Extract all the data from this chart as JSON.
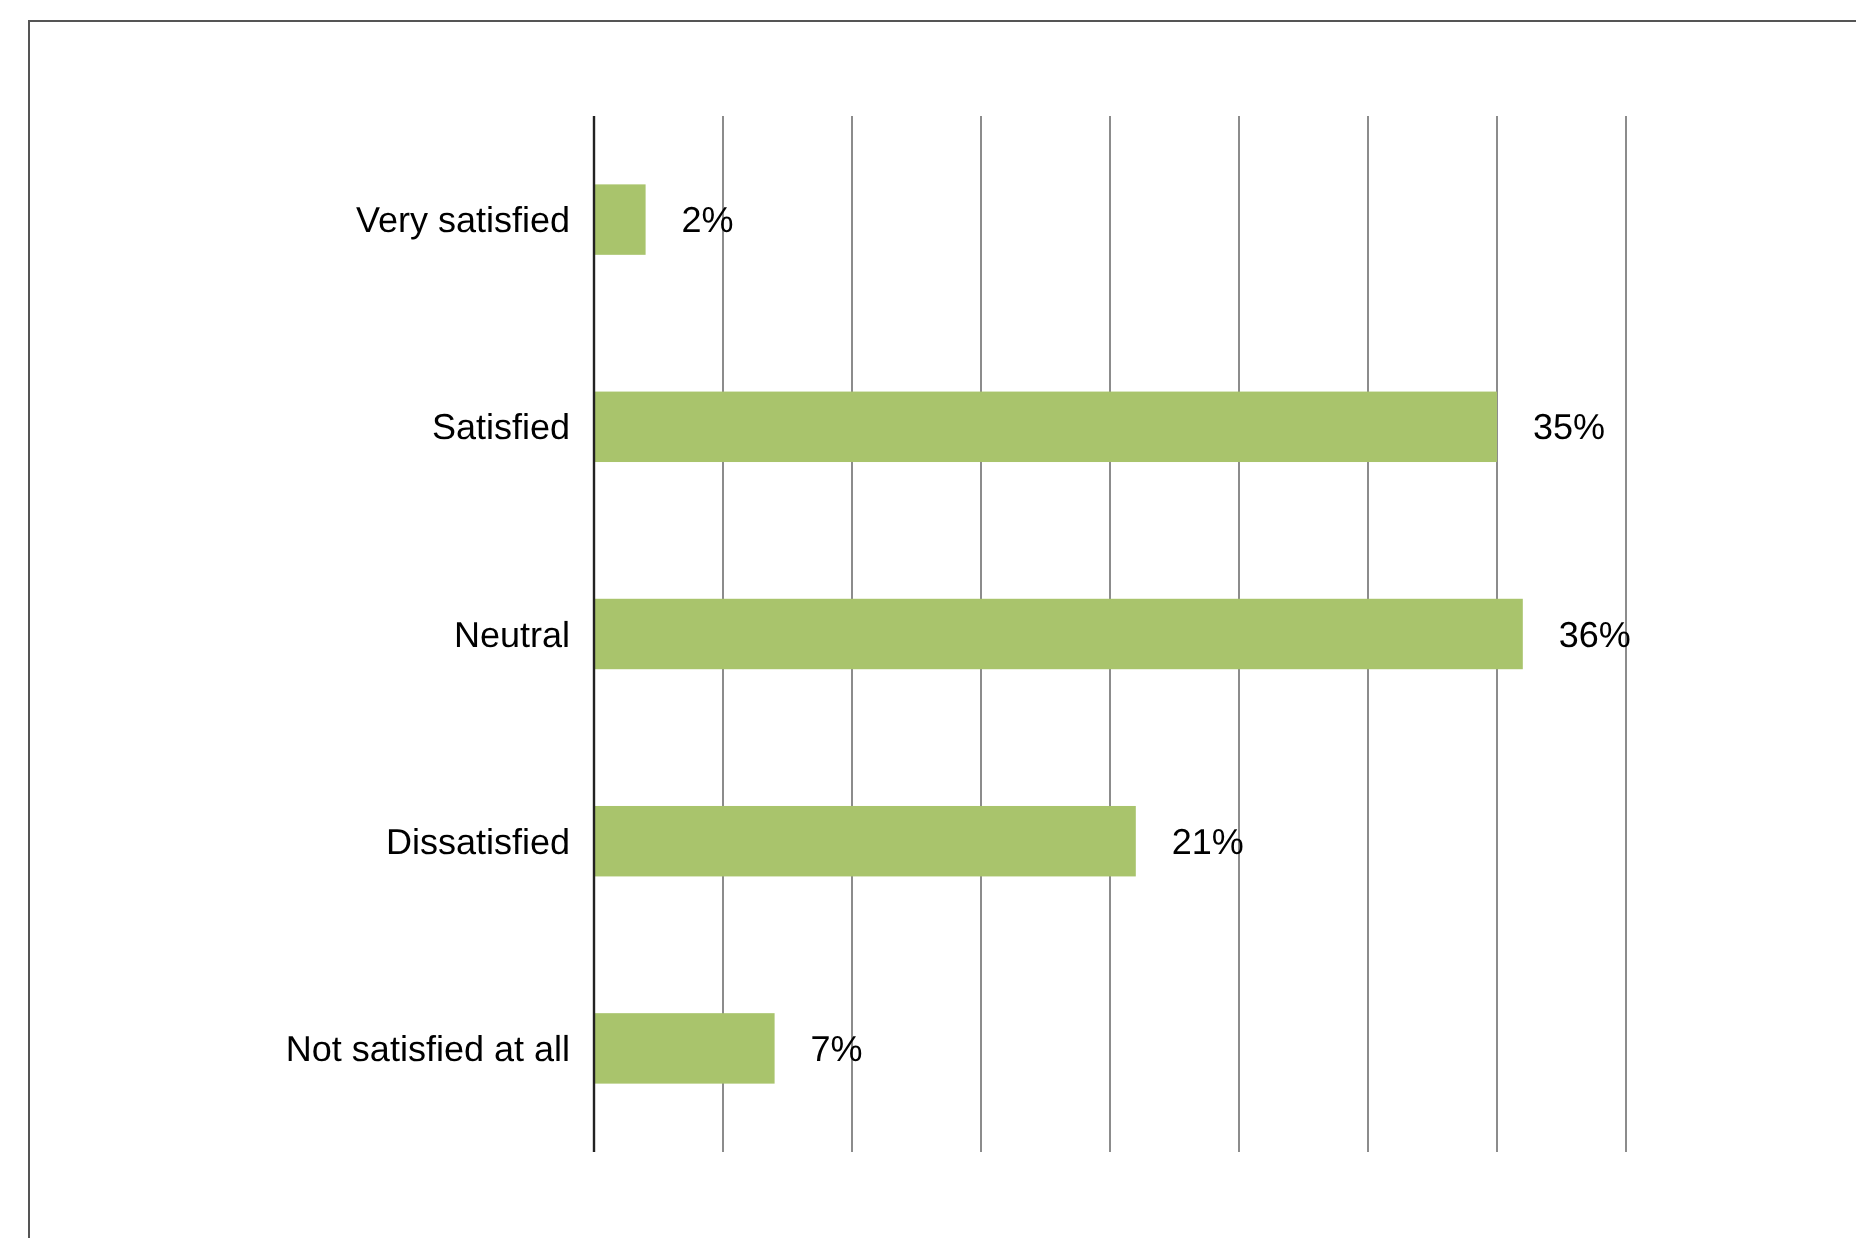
{
  "chart_data": {
    "type": "bar",
    "orientation": "horizontal",
    "categories": [
      "Very satisfied",
      "Satisfied",
      "Neutral",
      "Dissatisfied",
      "Not satisfied at all"
    ],
    "values": [
      2,
      35,
      36,
      21,
      7
    ],
    "color": "#a9c46c",
    "value_labels": [
      "2%",
      "35%",
      "36%",
      "21%",
      "7%"
    ],
    "xlim": [
      0,
      40
    ],
    "xticks": [
      {
        "value": 0,
        "label": null
      },
      {
        "value": 5,
        "label": null
      },
      {
        "value": 10,
        "label": null
      },
      {
        "value": 15,
        "label": null
      },
      {
        "value": 20,
        "label": null
      },
      {
        "value": 25,
        "label": null
      },
      {
        "value": 30,
        "label": null
      },
      {
        "value": 35,
        "label": null
      },
      {
        "value": 40,
        "label": null
      }
    ],
    "tick_labels": "y",
    "grid": "x"
  }
}
